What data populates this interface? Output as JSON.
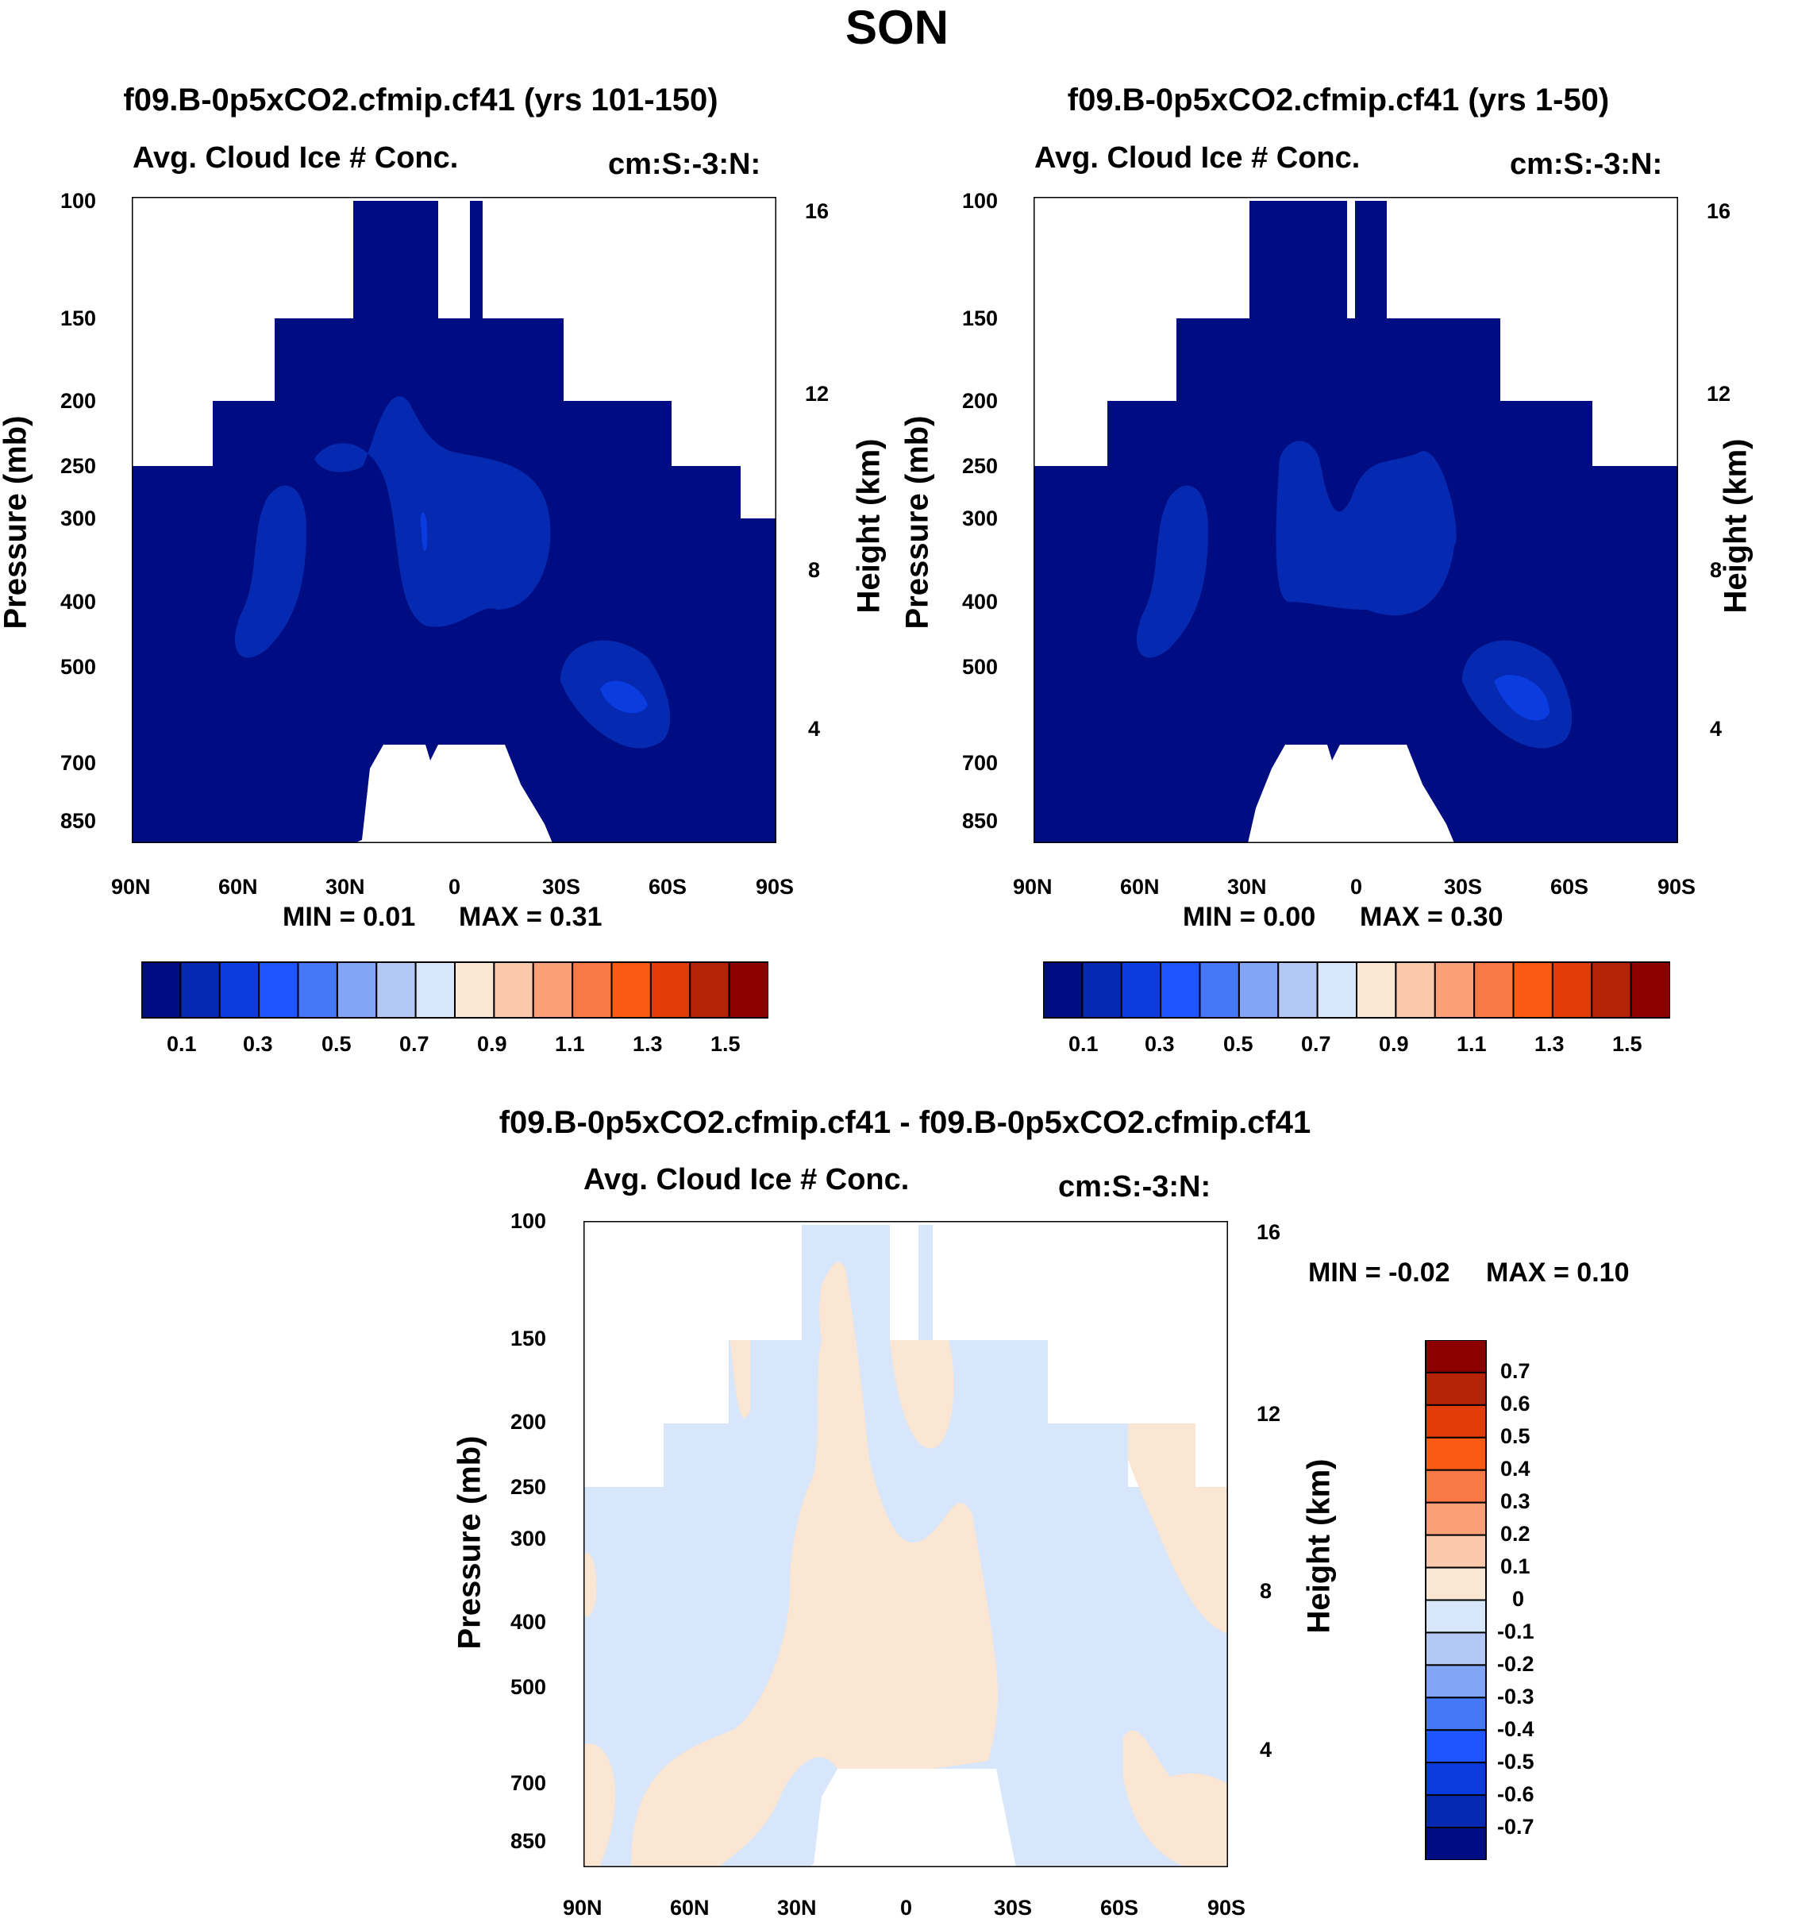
{
  "page": {
    "title": "SON"
  },
  "chart_data": [
    {
      "type": "contour",
      "title": "f09.B-0p5xCO2.cfmip.cf41 (yrs 101-150)",
      "left_string": "Avg. Cloud Ice # Conc.",
      "right_string": "cm:S:-3:N:",
      "ylabel": "Pressure (mb)",
      "ylabel_right": "Height (km)",
      "x_ticks": [
        "90N",
        "60N",
        "30N",
        "0",
        "30S",
        "60S",
        "90S"
      ],
      "y_ticks": [
        "100",
        "150",
        "200",
        "250",
        "300",
        "400",
        "500",
        "700",
        "850"
      ],
      "y2_ticks": [
        "16",
        "12",
        "8",
        "4"
      ],
      "min_label": "MIN =   0.01",
      "max_label": "MAX =   0.31",
      "min": 0.01,
      "max": 0.31,
      "colorbar_labels": [
        "0.1",
        "0.3",
        "0.5",
        "0.7",
        "0.9",
        "1.1",
        "1.3",
        "1.5"
      ]
    },
    {
      "type": "contour",
      "title": "f09.B-0p5xCO2.cfmip.cf41 (yrs 1-50)",
      "left_string": "Avg. Cloud Ice # Conc.",
      "right_string": "cm:S:-3:N:",
      "ylabel": "Pressure (mb)",
      "ylabel_right": "Height (km)",
      "x_ticks": [
        "90N",
        "60N",
        "30N",
        "0",
        "30S",
        "60S",
        "90S"
      ],
      "y_ticks": [
        "100",
        "150",
        "200",
        "250",
        "300",
        "400",
        "500",
        "700",
        "850"
      ],
      "y2_ticks": [
        "16",
        "12",
        "8",
        "4"
      ],
      "min_label": "MIN =   0.00",
      "max_label": "MAX =   0.30",
      "min": 0.0,
      "max": 0.3,
      "colorbar_labels": [
        "0.1",
        "0.3",
        "0.5",
        "0.7",
        "0.9",
        "1.1",
        "1.3",
        "1.5"
      ]
    },
    {
      "type": "contour",
      "title": "f09.B-0p5xCO2.cfmip.cf41 - f09.B-0p5xCO2.cfmip.cf41",
      "left_string": "Avg. Cloud Ice # Conc.",
      "right_string": "cm:S:-3:N:",
      "ylabel": "Pressure (mb)",
      "ylabel_right": "Height (km)",
      "x_ticks": [
        "90N",
        "60N",
        "30N",
        "0",
        "30S",
        "60S",
        "90S"
      ],
      "y_ticks": [
        "100",
        "150",
        "200",
        "250",
        "300",
        "400",
        "500",
        "700",
        "850"
      ],
      "y2_ticks": [
        "16",
        "12",
        "8",
        "4"
      ],
      "min_label": "MIN =  -0.02",
      "max_label": "MAX =   0.10",
      "min": -0.02,
      "max": 0.1,
      "colorbar_labels": [
        "0.7",
        "0.6",
        "0.5",
        "0.4",
        "0.3",
        "0.2",
        "0.1",
        "0",
        "-0.1",
        "-0.2",
        "-0.3",
        "-0.4",
        "-0.5",
        "-0.6",
        "-0.7"
      ]
    }
  ],
  "colors": {
    "abs_scale": [
      "#000D82",
      "#0529B0",
      "#0A3CE0",
      "#1E55FF",
      "#4678F5",
      "#82A5F5",
      "#B4C8F5",
      "#D7E6FA",
      "#FAE6D2",
      "#FAC8AA",
      "#FAA078",
      "#FA7846",
      "#FA5A14",
      "#E13C0A",
      "#B42305",
      "#8C0000"
    ],
    "diff_scale_top_to_bottom": [
      "#8C0000",
      "#B42305",
      "#E13C0A",
      "#FA5A14",
      "#FA7846",
      "#FAA078",
      "#FAC8AA",
      "#FAE6D2",
      "#D7E6FA",
      "#B4C8F5",
      "#82A5F5",
      "#4678F5",
      "#1E55FF",
      "#0A3CE0",
      "#0529B0",
      "#000D82"
    ],
    "field_dark": "#000D82",
    "field_mid": "#0529B0",
    "field_light": "#0A3CE0",
    "diff_pos": "#FAE6D2",
    "diff_neg": "#D7E6FA"
  }
}
